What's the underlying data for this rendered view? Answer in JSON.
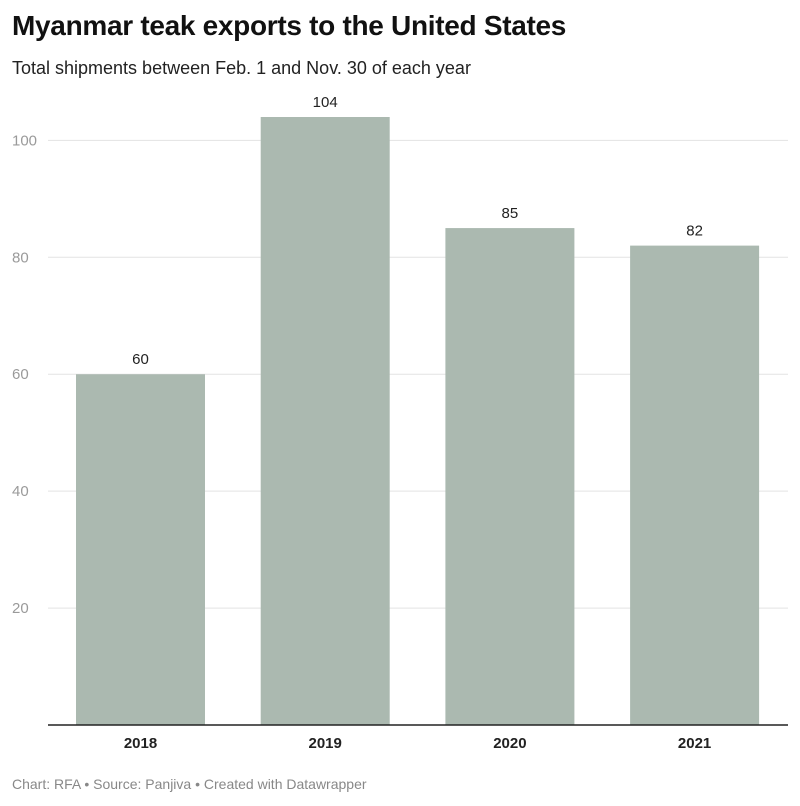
{
  "header": {
    "title": "Myanmar teak exports to the United States",
    "subtitle": "Total shipments between Feb. 1 and Nov. 30 of each year"
  },
  "footer": {
    "text": "Chart: RFA • Source: Panjiva • Created with Datawrapper"
  },
  "chart_data": {
    "type": "bar",
    "title": "Myanmar teak exports to the United States",
    "subtitle": "Total shipments between Feb. 1 and Nov. 30 of each year",
    "categories": [
      "2018",
      "2019",
      "2020",
      "2021"
    ],
    "values": [
      60,
      104,
      85,
      82
    ],
    "ylim": [
      0,
      104
    ],
    "yticks": [
      20,
      40,
      60,
      80,
      100
    ],
    "grid": true,
    "bar_color": "#abb9b0",
    "data_labels": true
  }
}
